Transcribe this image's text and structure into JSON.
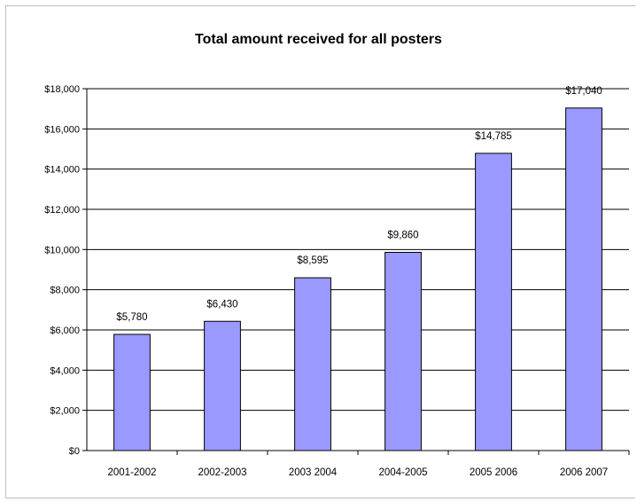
{
  "chart_data": {
    "type": "bar",
    "title": "Total amount received for all posters",
    "xlabel": "",
    "ylabel": "",
    "categories": [
      "2001-2002",
      "2002-2003",
      "2003 2004",
      "2004-2005",
      "2005 2006",
      "2006 2007"
    ],
    "values": [
      5780,
      6430,
      8595,
      9860,
      14785,
      17040
    ],
    "data_labels": [
      "$5,780",
      "$6,430",
      "$8,595",
      "$9,860",
      "$14,785",
      "$17,040"
    ],
    "ylim": [
      0,
      18000
    ],
    "y_ticks": [
      0,
      2000,
      4000,
      6000,
      8000,
      10000,
      12000,
      14000,
      16000,
      18000
    ],
    "y_tick_labels": [
      "$0",
      "$2,000",
      "$4,000",
      "$6,000",
      "$8,000",
      "$10,000",
      "$12,000",
      "$14,000",
      "$16,000",
      "$18,000"
    ],
    "grid": true,
    "legend": "none",
    "bar_color": "#9999ff",
    "bar_edge_color": "#000000"
  }
}
